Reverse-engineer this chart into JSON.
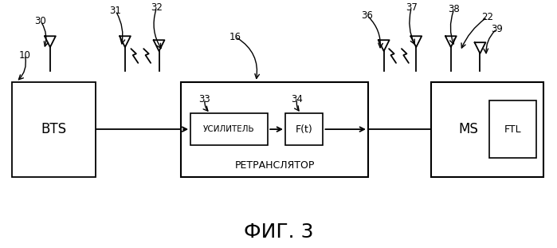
{
  "background_color": "#ffffff",
  "title": "ФИГ. 3",
  "title_fontsize": 18,
  "labels": {
    "bts": "BTS",
    "amplifier": "УСИЛИТЕЛЬ",
    "ft": "F(t)",
    "retranslator": "РЕТРАНСЛЯТОР",
    "ms": "MS",
    "ftl": "FTL",
    "num_10": "10",
    "num_16": "16",
    "num_22": "22",
    "num_30": "30",
    "num_31": "31",
    "num_32": "32",
    "num_33": "33",
    "num_34": "34",
    "num_36": "36",
    "num_37": "37",
    "num_38": "38",
    "num_39": "39"
  },
  "box_color": "#000000",
  "line_color": "#000000",
  "text_color": "#000000"
}
